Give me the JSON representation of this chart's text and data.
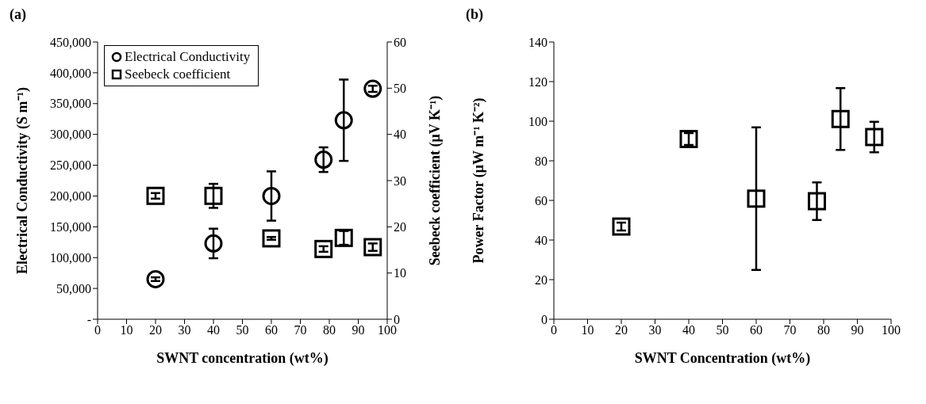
{
  "chart_data": [
    {
      "type": "scatter",
      "title": "(a)",
      "xlabel": "SWNT concentration (wt%)",
      "ylabel": "Electrical Conductivity (S m⁻¹)",
      "y2label": "Seebeck coefficient (μV K⁻¹)",
      "xlim": [
        0,
        100
      ],
      "xticks": [
        0,
        10,
        20,
        30,
        40,
        50,
        60,
        70,
        80,
        90,
        100
      ],
      "ylim": [
        0,
        450000
      ],
      "yticks": [
        {
          "value": 0,
          "label": "-"
        },
        {
          "value": 50000,
          "label": "50,000"
        },
        {
          "value": 100000,
          "label": "100,000"
        },
        {
          "value": 150000,
          "label": "150,000"
        },
        {
          "value": 200000,
          "label": "200,000"
        },
        {
          "value": 250000,
          "label": "250,000"
        },
        {
          "value": 300000,
          "label": "300,000"
        },
        {
          "value": 350000,
          "label": "350,000"
        },
        {
          "value": 400000,
          "label": "400,000"
        },
        {
          "value": 450000,
          "label": "450,000"
        }
      ],
      "y2lim": [
        0,
        60
      ],
      "y2ticks": [
        0,
        10,
        20,
        30,
        40,
        50,
        60
      ],
      "grid": false,
      "legend": "top left",
      "x": [
        20,
        40,
        60,
        78,
        85,
        95
      ],
      "series": [
        {
          "name": "Electrical Conductivity",
          "color": "#000000",
          "marker": "circle",
          "values": [
            65000,
            123000,
            200000,
            259000,
            323000,
            374000
          ],
          "errors": [
            3000,
            24000,
            40000,
            20000,
            66000,
            5000
          ]
        },
        {
          "name": "Seebeck coefficient",
          "color": "#000000",
          "marker": "square",
          "axis": "y2",
          "values": [
            26.7,
            26.7,
            17.5,
            15.2,
            17.6,
            15.6
          ],
          "errors": [
            0.6,
            2.6,
            0.3,
            0.6,
            1.5,
            0.8
          ]
        }
      ]
    },
    {
      "type": "scatter",
      "title": "(b)",
      "xlabel": "SWNT Concentration (wt%)",
      "ylabel": "Power Factor (μW m⁻¹ K⁻²)",
      "xlim": [
        0,
        100
      ],
      "xticks": [
        0,
        10,
        20,
        30,
        40,
        50,
        60,
        70,
        80,
        90,
        100
      ],
      "ylim": [
        0,
        140
      ],
      "yticks": [
        0,
        20,
        40,
        60,
        80,
        100,
        120,
        140
      ],
      "grid": false,
      "legend": false,
      "x": [
        20,
        40,
        60,
        78,
        85,
        95
      ],
      "series": [
        {
          "color": "#000000",
          "marker": "square",
          "values": [
            46.8,
            91,
            60.9,
            59.6,
            101.1,
            92
          ],
          "errors": [
            2,
            3,
            36,
            9.5,
            15.6,
            7.7
          ]
        }
      ]
    }
  ]
}
